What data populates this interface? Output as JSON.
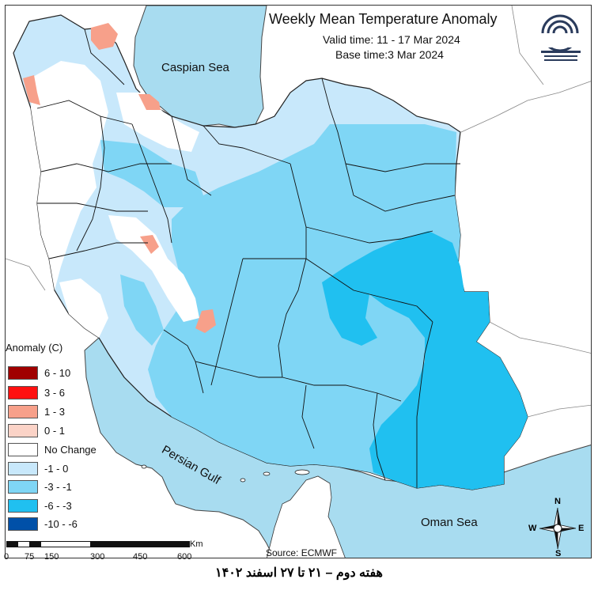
{
  "title": "Weekly Mean Temperature Anomaly",
  "valid_time": "Valid time: 11 - 17 Mar 2024",
  "base_time": "Base time:3 Mar 2024",
  "water_labels": {
    "caspian": "Caspian Sea",
    "gulf": "Persian Gulf",
    "oman": "Oman Sea"
  },
  "legend": {
    "title": "Anomaly (C)",
    "items": [
      {
        "label": "6 - 10",
        "color": "#a00000"
      },
      {
        "label": "3 - 6",
        "color": "#ff1010"
      },
      {
        "label": "1 - 3",
        "color": "#f7a08a"
      },
      {
        "label": "0 - 1",
        "color": "#fbd3c7"
      },
      {
        "label": "No Change",
        "color": "#ffffff"
      },
      {
        "label": "-1 - 0",
        "color": "#c8e8fb"
      },
      {
        "label": "-3 - -1",
        "color": "#7fd6f5"
      },
      {
        "label": "-6 - -3",
        "color": "#20c0f0"
      },
      {
        "label": "-10 - -6",
        "color": "#0050a8"
      }
    ]
  },
  "scale": {
    "unit": "Km",
    "ticks": [
      "0",
      "75",
      "150",
      "300",
      "450",
      "600"
    ]
  },
  "compass": {
    "n": "N",
    "s": "S",
    "e": "E",
    "w": "W"
  },
  "source": "Source: ECMWF",
  "footer": "هفته دوم – ۲۱ تا ۲۷ اسفند ۱۴۰۲",
  "colors": {
    "sea": "#a8dcf0",
    "neutral_land": "#ffffff",
    "background_land": "#ffffff"
  }
}
